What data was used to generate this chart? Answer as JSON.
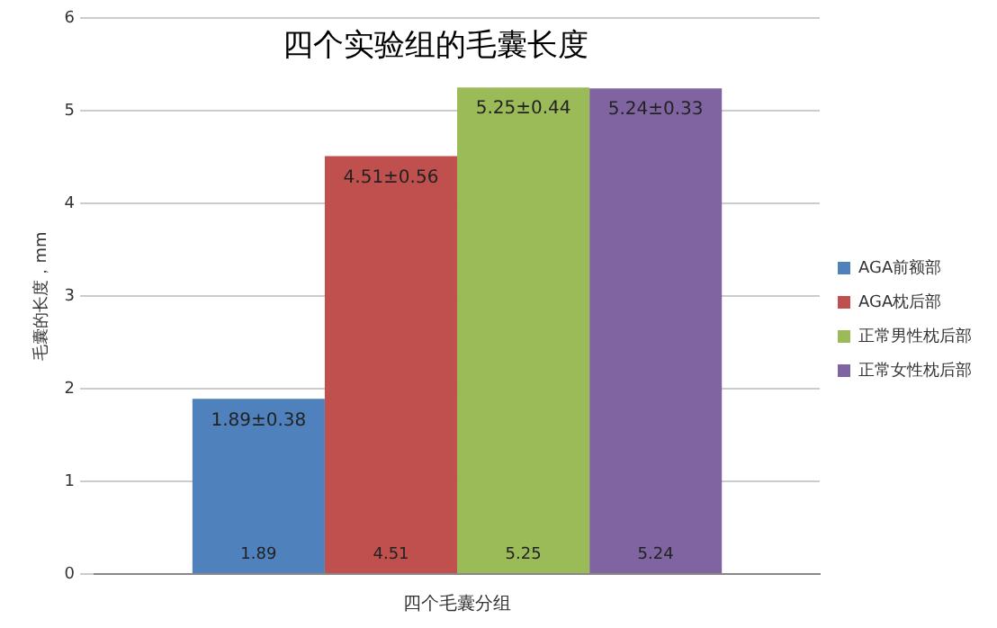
{
  "chart_data": {
    "type": "bar",
    "title": "四个实验组的毛囊长度",
    "ylabel": "毛囊的长度，mm",
    "categories": [
      "四个毛囊分组"
    ],
    "series": [
      {
        "name": "AGA前额部",
        "color": "#4f81bd",
        "values": [
          1.89
        ]
      },
      {
        "name": "AGA枕后部",
        "color": "#c0504d",
        "values": [
          4.51
        ]
      },
      {
        "name": "正常男性枕后部",
        "color": "#9bbb59",
        "values": [
          5.25
        ]
      },
      {
        "name": "正常女性枕后部",
        "color": "#8064a2",
        "values": [
          5.24
        ]
      }
    ],
    "ylim": [
      0,
      6
    ],
    "yticks": [
      0,
      1,
      2,
      3,
      4,
      5,
      6
    ],
    "grid": "y",
    "legend": "right",
    "data_labels": true,
    "annotations": [
      "1.89±0.38",
      "4.51±0.56",
      "5.25±0.44",
      "5.24±0.33"
    ]
  }
}
